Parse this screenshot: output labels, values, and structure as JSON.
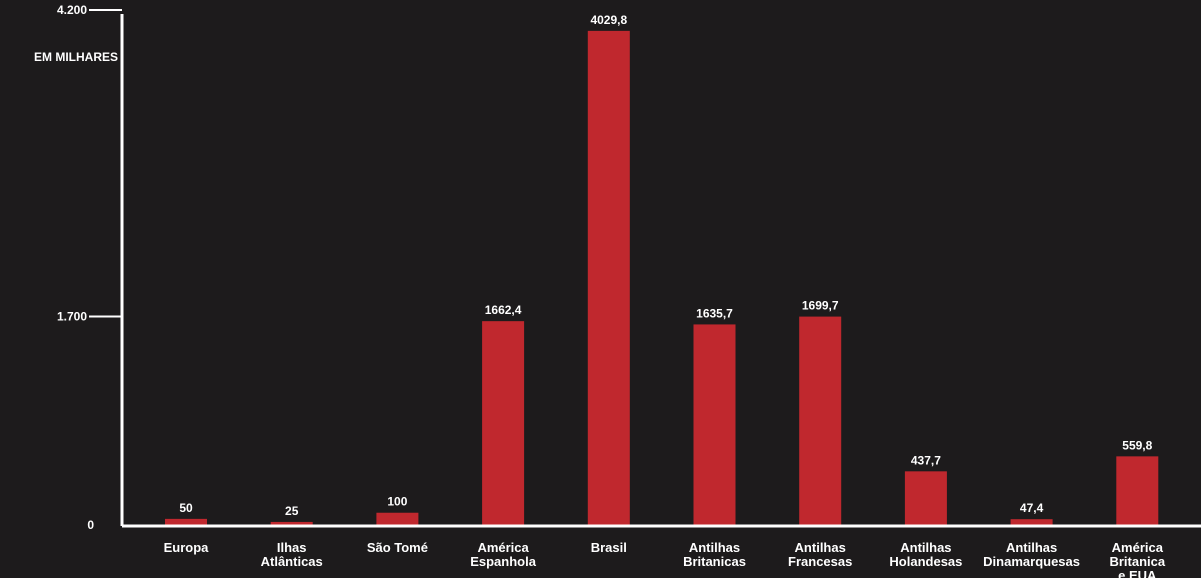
{
  "chart_data": {
    "type": "bar",
    "title": "",
    "xlabel": "",
    "ylabel": "",
    "y_unit_label": "EM MILHARES",
    "yticks": [
      {
        "value": 0,
        "label": "0"
      },
      {
        "value": 1700,
        "label": "1.700"
      },
      {
        "value": 4200,
        "label": "4.200"
      }
    ],
    "ylim": [
      0,
      4200
    ],
    "grid": false,
    "legend": "none",
    "bar_color": "#c0282e",
    "background_color": "#1d1b1c",
    "axis_color": "#ffffff",
    "categories": [
      [
        "Europa"
      ],
      [
        "Ilhas",
        "Atlânticas"
      ],
      [
        "São Tomé"
      ],
      [
        "América",
        "Espanhola"
      ],
      [
        "Brasil"
      ],
      [
        "Antilhas",
        "Britanicas"
      ],
      [
        "Antilhas",
        "Francesas"
      ],
      [
        "Antilhas",
        "Holandesas"
      ],
      [
        "Antilhas",
        "Dinamarquesas"
      ],
      [
        "América",
        "Britanica",
        "e EUA"
      ]
    ],
    "values": [
      50,
      25,
      100,
      1662.4,
      4029.8,
      1635.7,
      1699.7,
      437.7,
      47.4,
      559.8
    ],
    "value_labels": [
      "50",
      "25",
      "100",
      "1662,4",
      "4029,8",
      "1635,7",
      "1699,7",
      "437,7",
      "47,4",
      "559,8"
    ]
  }
}
